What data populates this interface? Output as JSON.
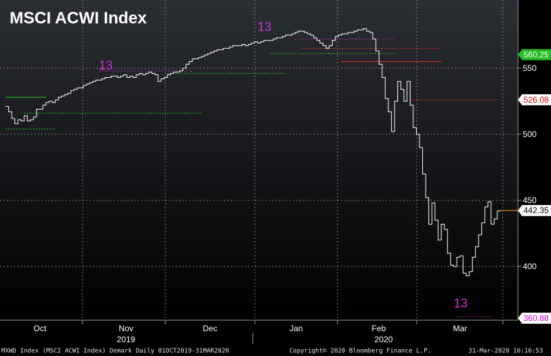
{
  "chart_data": {
    "type": "line",
    "title": "MSCI ACWI Index",
    "ylim": [
      360.88,
      575
    ],
    "yticks": [
      400,
      450,
      500,
      550
    ],
    "grid": true,
    "x_months": [
      {
        "label": "Oct",
        "day": 0
      },
      {
        "label": "Nov",
        "day": 31
      },
      {
        "label": "Dec",
        "day": 61
      },
      {
        "label": "Jan",
        "day": 92
      },
      {
        "label": "Feb",
        "day": 123
      },
      {
        "label": "Mar",
        "day": 152
      }
    ],
    "x_years": [
      {
        "label": "2019",
        "day": 31
      },
      {
        "label": "2020",
        "day": 123
      }
    ],
    "x_days_total": 182,
    "series": [
      {
        "points": [
          [
            0,
            521
          ],
          [
            1,
            517
          ],
          [
            2,
            512
          ],
          [
            3,
            508
          ],
          [
            4,
            511
          ],
          [
            5,
            510
          ],
          [
            6,
            514
          ],
          [
            7,
            510
          ],
          [
            8,
            511
          ],
          [
            9,
            513
          ],
          [
            10,
            519
          ],
          [
            11,
            519
          ],
          [
            12,
            522
          ],
          [
            13,
            524
          ],
          [
            14,
            525
          ],
          [
            15,
            524
          ],
          [
            16,
            526
          ],
          [
            17,
            528
          ],
          [
            18,
            529
          ],
          [
            19,
            530
          ],
          [
            20,
            531
          ],
          [
            21,
            533
          ],
          [
            22,
            534
          ],
          [
            23,
            535
          ],
          [
            24,
            535
          ],
          [
            25,
            537
          ],
          [
            26,
            538
          ],
          [
            27,
            539
          ],
          [
            28,
            540
          ],
          [
            29,
            541
          ],
          [
            30,
            541
          ],
          [
            31,
            542
          ],
          [
            32,
            543
          ],
          [
            33,
            543
          ],
          [
            34,
            544
          ],
          [
            35,
            544
          ],
          [
            36,
            543
          ],
          [
            37,
            544
          ],
          [
            38,
            545
          ],
          [
            39,
            543
          ],
          [
            40,
            544
          ],
          [
            41,
            543
          ],
          [
            42,
            545
          ],
          [
            43,
            546
          ],
          [
            44,
            545
          ],
          [
            45,
            546
          ],
          [
            46,
            547
          ],
          [
            47,
            546
          ],
          [
            48,
            545
          ],
          [
            49,
            540
          ],
          [
            50,
            542
          ],
          [
            51,
            543
          ],
          [
            52,
            545
          ],
          [
            53,
            546
          ],
          [
            54,
            547
          ],
          [
            55,
            547
          ],
          [
            56,
            548
          ],
          [
            57,
            550
          ],
          [
            58,
            553
          ],
          [
            59,
            555
          ],
          [
            60,
            557
          ],
          [
            61,
            557
          ],
          [
            62,
            558
          ],
          [
            63,
            559
          ],
          [
            64,
            560
          ],
          [
            65,
            561
          ],
          [
            66,
            562
          ],
          [
            67,
            563
          ],
          [
            68,
            564
          ],
          [
            69,
            564
          ],
          [
            70,
            565
          ],
          [
            71,
            565
          ],
          [
            72,
            566
          ],
          [
            73,
            567
          ],
          [
            74,
            567
          ],
          [
            75,
            567
          ],
          [
            76,
            568
          ],
          [
            77,
            567
          ],
          [
            78,
            568
          ],
          [
            79,
            569
          ],
          [
            80,
            570
          ],
          [
            81,
            569
          ],
          [
            82,
            570
          ],
          [
            83,
            571
          ],
          [
            84,
            571
          ],
          [
            85,
            571
          ],
          [
            86,
            572
          ],
          [
            87,
            573
          ],
          [
            88,
            573
          ],
          [
            89,
            574
          ],
          [
            90,
            575
          ],
          [
            91,
            575
          ],
          [
            92,
            576
          ],
          [
            93,
            577
          ],
          [
            94,
            578
          ],
          [
            95,
            578
          ],
          [
            96,
            577
          ],
          [
            97,
            576
          ],
          [
            98,
            575
          ],
          [
            99,
            573
          ],
          [
            100,
            571
          ],
          [
            101,
            569
          ],
          [
            102,
            567
          ],
          [
            103,
            565
          ],
          [
            104,
            567
          ],
          [
            105,
            571
          ],
          [
            106,
            574
          ],
          [
            107,
            575
          ],
          [
            108,
            576
          ],
          [
            109,
            576
          ],
          [
            110,
            577
          ],
          [
            111,
            577
          ],
          [
            112,
            578
          ],
          [
            113,
            579
          ],
          [
            114,
            579
          ],
          [
            115,
            580
          ],
          [
            116,
            578
          ],
          [
            117,
            577
          ],
          [
            118,
            572
          ],
          [
            119,
            563
          ],
          [
            120,
            553
          ],
          [
            121,
            543
          ],
          [
            122,
            527
          ],
          [
            123,
            517
          ],
          [
            124,
            502
          ],
          [
            125,
            525
          ],
          [
            126,
            540
          ],
          [
            127,
            534
          ],
          [
            128,
            525
          ],
          [
            129,
            540
          ],
          [
            130,
            522
          ],
          [
            131,
            505
          ],
          [
            132,
            500
          ],
          [
            133,
            490
          ],
          [
            134,
            470
          ],
          [
            135,
            452
          ],
          [
            136,
            432
          ],
          [
            137,
            448
          ],
          [
            138,
            435
          ],
          [
            139,
            420
          ],
          [
            140,
            432
          ],
          [
            141,
            428
          ],
          [
            142,
            410
          ],
          [
            143,
            401
          ],
          [
            144,
            400
          ],
          [
            145,
            407
          ],
          [
            146,
            408
          ],
          [
            147,
            395
          ],
          [
            148,
            393
          ],
          [
            149,
            396
          ],
          [
            150,
            407
          ],
          [
            151,
            415
          ],
          [
            152,
            424
          ],
          [
            153,
            433
          ],
          [
            154,
            445
          ],
          [
            155,
            449
          ],
          [
            156,
            432
          ],
          [
            157,
            436
          ],
          [
            158,
            442
          ]
        ]
      }
    ],
    "levels": [
      {
        "y": 565,
        "x0": 95,
        "x1": 140,
        "color": "#ff3333",
        "dash": true
      },
      {
        "y": 555,
        "x0": 108,
        "x1": 140,
        "color": "#ff3333",
        "dash": false
      },
      {
        "y": 561,
        "x0": 85,
        "x1": 125,
        "color": "#22cc22",
        "dash": true
      },
      {
        "y": 548,
        "x0": 30,
        "x1": 60,
        "color": "#aa33aa",
        "dash": true
      },
      {
        "y": 546,
        "x0": 52,
        "x1": 90,
        "color": "#22cc22",
        "dash": true
      },
      {
        "y": 528,
        "x0": 0,
        "x1": 13,
        "color": "#22cc22",
        "dash": false
      },
      {
        "y": 516,
        "x0": 6,
        "x1": 63,
        "color": "#22cc22",
        "dash": true
      },
      {
        "y": 504,
        "x0": 0,
        "x1": 16,
        "color": "#22cc22",
        "dash": true
      },
      {
        "y": 526.08,
        "x0": 130,
        "x1": 158,
        "color": "#ff3333",
        "dash": true
      },
      {
        "y": 572,
        "x0": 93,
        "x1": 125,
        "color": "#aa33aa",
        "dash": true
      },
      {
        "y": 362,
        "x0": 145,
        "x1": 156,
        "color": "#aa33aa",
        "dash": true
      }
    ],
    "annotations": [
      {
        "text": "13",
        "x": 30,
        "y": 549
      },
      {
        "text": "13",
        "x": 81,
        "y": 578
      },
      {
        "text": "13",
        "x": 144,
        "y": 369
      }
    ],
    "right_labels": [
      {
        "value": "560.25",
        "y": 560.25,
        "bg": "#22bb22",
        "fg": "#ffffff"
      },
      {
        "value": "526.08",
        "y": 526.08,
        "bg": "#ffffff",
        "fg": "#cc0000"
      },
      {
        "value": "442.35",
        "y": 442.35,
        "bg": "#ffffff",
        "fg": "#000000"
      },
      {
        "value": "360.88",
        "y": 360.88,
        "bg": "#ffffff",
        "fg": "#cc00cc"
      }
    ],
    "last_price": 442.35,
    "last_price_color": "#ff9900"
  },
  "footer": {
    "left": "MXWD Index (MSCI ACWI Index) Demark  Daily 01OCT2019-31MAR2020",
    "center": "Copyright© 2020 Bloomberg Finance L.P.",
    "right": "31-Mar-2020 16:16:53"
  },
  "colors": {
    "background_top": "#2a2d33",
    "background_bottom": "#000000",
    "grid": "#7f7f7f",
    "price_line": "#ffffff"
  }
}
